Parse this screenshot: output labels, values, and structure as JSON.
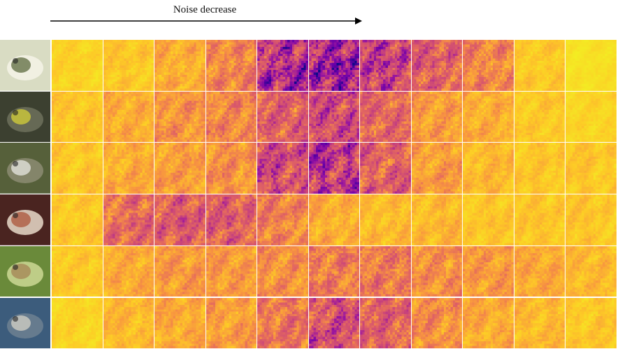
{
  "figure": {
    "caption": "Noise decrease",
    "rows": [
      {
        "image": "white-frog-icon",
        "colors": [
          "#d9dcc3",
          "#6f7a52",
          "#f3f2e6"
        ],
        "levels": [
          0.15,
          0.2,
          0.3,
          0.45,
          0.85,
          0.9,
          0.75,
          0.6,
          0.45,
          0.2,
          0.1
        ]
      },
      {
        "image": "crab-icon",
        "colors": [
          "#3c4030",
          "#c8c43c",
          "#6a6e5a"
        ],
        "levels": [
          0.2,
          0.3,
          0.4,
          0.45,
          0.6,
          0.7,
          0.55,
          0.35,
          0.3,
          0.2,
          0.15
        ]
      },
      {
        "image": "white-bird-icon",
        "colors": [
          "#56603a",
          "#dcdcd4",
          "#8a8a70"
        ],
        "levels": [
          0.2,
          0.3,
          0.35,
          0.4,
          0.7,
          0.8,
          0.6,
          0.35,
          0.25,
          0.2,
          0.2
        ]
      },
      {
        "image": "person-icon",
        "colors": [
          "#4a2420",
          "#b06048",
          "#e0d0c0"
        ],
        "levels": [
          0.2,
          0.55,
          0.6,
          0.6,
          0.45,
          0.3,
          0.25,
          0.25,
          0.2,
          0.2,
          0.2
        ]
      },
      {
        "image": "small-bird-icon",
        "colors": [
          "#6a8a3a",
          "#a88c5a",
          "#c8d490"
        ],
        "levels": [
          0.2,
          0.3,
          0.35,
          0.35,
          0.4,
          0.5,
          0.5,
          0.4,
          0.35,
          0.3,
          0.25
        ]
      },
      {
        "image": "heron-icon",
        "colors": [
          "#3c5c7c",
          "#c8c8c0",
          "#6a7e90"
        ],
        "levels": [
          0.15,
          0.25,
          0.3,
          0.35,
          0.5,
          0.7,
          0.6,
          0.4,
          0.3,
          0.25,
          0.2
        ]
      }
    ]
  }
}
